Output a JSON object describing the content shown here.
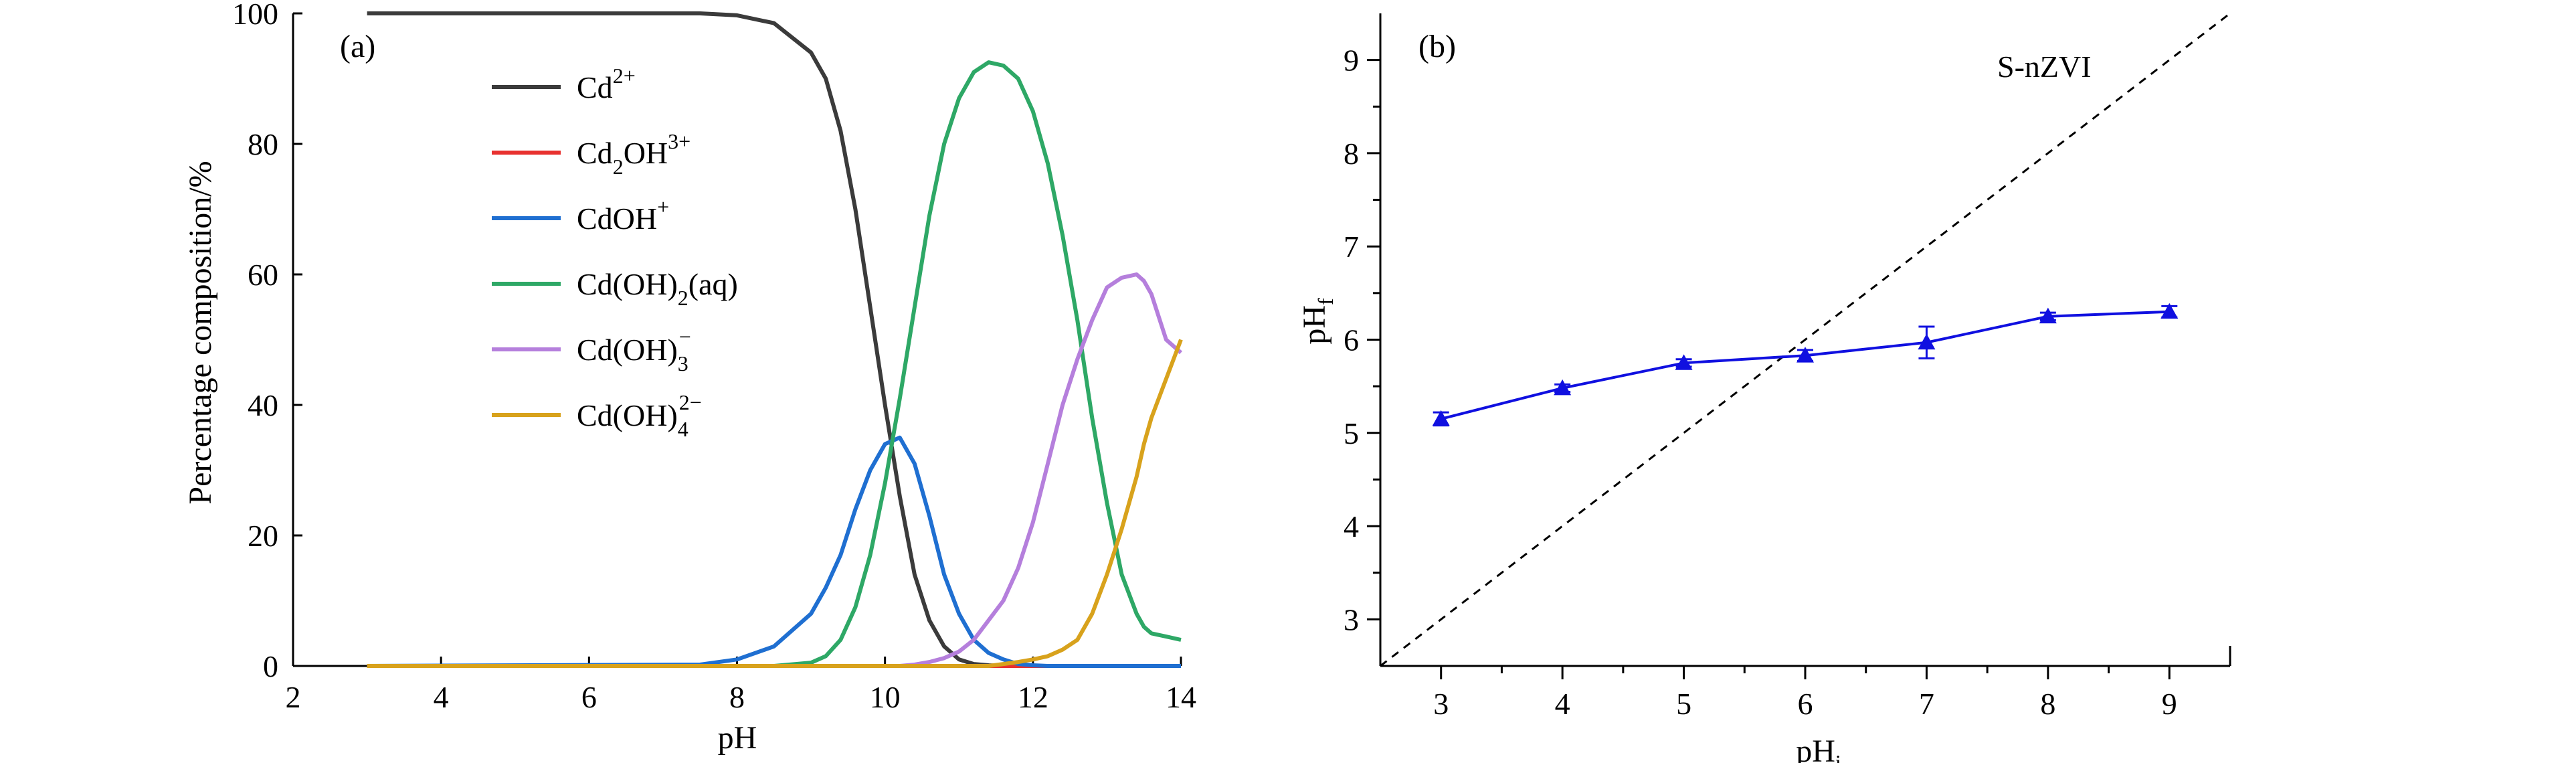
{
  "chart_data": [
    {
      "panel": "(a)",
      "type": "line",
      "xlabel": "pH",
      "ylabel": "Percentage composition/%",
      "xlim": [
        2,
        14
      ],
      "ylim": [
        0,
        100
      ],
      "xticks": [
        2,
        4,
        6,
        8,
        10,
        12,
        14
      ],
      "yticks": [
        0,
        20,
        40,
        60,
        80,
        100
      ],
      "grid": false,
      "legend_position": "top-center",
      "x": [
        3,
        7.5,
        8,
        8.5,
        9,
        9.2,
        9.4,
        9.6,
        9.8,
        10,
        10.2,
        10.4,
        10.6,
        10.8,
        11,
        11.2,
        11.4,
        11.6,
        11.8,
        12,
        12.2,
        12.4,
        12.6,
        12.8,
        13,
        13.2,
        13.4,
        13.5,
        13.6,
        13.8,
        14
      ],
      "series": [
        {
          "name": "Cd2+",
          "label_base": "Cd",
          "label_sup": "2+",
          "label_sub": "",
          "color": "#3b3b3b",
          "values": [
            100,
            100,
            99.7,
            98.5,
            94,
            90,
            82,
            70,
            55,
            40,
            26,
            14,
            7,
            3,
            1,
            0.3,
            0.1,
            0,
            0,
            0,
            0,
            0,
            0,
            0,
            0,
            0,
            0,
            0,
            0,
            0,
            0
          ]
        },
        {
          "name": "Cd2OH3+",
          "label_base": "Cd",
          "label_sub": "2",
          "label_mid": "OH",
          "label_sup": "3+",
          "color": "#e8312f",
          "values": [
            0,
            0,
            0,
            0,
            0,
            0,
            0,
            0,
            0,
            0,
            0,
            0,
            0,
            0,
            0,
            0,
            0,
            0,
            0,
            0,
            0,
            0,
            0,
            0,
            0,
            0,
            0,
            0,
            0,
            0,
            0
          ]
        },
        {
          "name": "CdOH+",
          "label_base": "CdOH",
          "label_sup": "+",
          "label_sub": "",
          "color": "#1f6fd1",
          "values": [
            0,
            0.2,
            1,
            3,
            8,
            12,
            17,
            24,
            30,
            34,
            35,
            31,
            23,
            14,
            8,
            4,
            2,
            1,
            0.3,
            0.1,
            0,
            0,
            0,
            0,
            0,
            0,
            0,
            0,
            0,
            0,
            0
          ]
        },
        {
          "name": "Cd(OH)2(aq)",
          "label_base": "Cd(OH)",
          "label_sub": "2",
          "label_mid": "(aq)",
          "label_sup": "",
          "color": "#2ea866",
          "values": [
            0,
            0,
            0,
            0,
            0.5,
            1.5,
            4,
            9,
            17,
            28,
            41,
            55,
            69,
            80,
            87,
            91,
            92.5,
            92,
            90,
            85,
            77,
            66,
            53,
            38,
            25,
            14,
            8,
            6,
            5,
            4.5,
            4
          ]
        },
        {
          "name": "Cd(OH)3-",
          "label_base": "Cd(OH)",
          "label_sub": "3",
          "label_sup": "−",
          "color": "#b57fdc",
          "values": [
            0,
            0,
            0,
            0,
            0,
            0,
            0,
            0,
            0,
            0,
            0,
            0.2,
            0.6,
            1.2,
            2.2,
            4,
            7,
            10,
            15,
            22,
            31,
            40,
            47,
            53,
            58,
            59.5,
            60,
            59,
            57,
            50,
            48
          ]
        },
        {
          "name": "Cd(OH)42-",
          "label_base": "Cd(OH)",
          "label_sub": "4",
          "label_sup": "2−",
          "color": "#d8a21c",
          "values": [
            0,
            0,
            0,
            0,
            0,
            0,
            0,
            0,
            0,
            0,
            0,
            0,
            0,
            0,
            0,
            0,
            0,
            0.3,
            0.6,
            1,
            1.5,
            2.5,
            4,
            8,
            14,
            21,
            29,
            34,
            38,
            44,
            50
          ]
        }
      ]
    },
    {
      "panel": "(b)",
      "type": "line",
      "xlabel": "pH",
      "xlabel_sub": "i",
      "ylabel": "pH",
      "ylabel_sub": "f",
      "xlim": [
        2.5,
        9.5
      ],
      "ylim": [
        2.5,
        9.5
      ],
      "xticks": [
        3,
        4,
        5,
        6,
        7,
        8,
        9
      ],
      "yticks": [
        3,
        4,
        5,
        6,
        7,
        8,
        9
      ],
      "grid": false,
      "annotation": "S-nZVI",
      "reference_line": {
        "style": "dashed",
        "x": [
          2.5,
          9.5
        ],
        "y": [
          2.5,
          9.5
        ]
      },
      "series": [
        {
          "color": "#1010e0",
          "marker": "triangle",
          "x": [
            3,
            4,
            5,
            6,
            7,
            8,
            9
          ],
          "y": [
            5.15,
            5.48,
            5.75,
            5.83,
            5.97,
            6.25,
            6.3
          ],
          "error": [
            0.07,
            0.04,
            0.04,
            0.06,
            0.17,
            0.04,
            0.06
          ]
        }
      ]
    }
  ]
}
